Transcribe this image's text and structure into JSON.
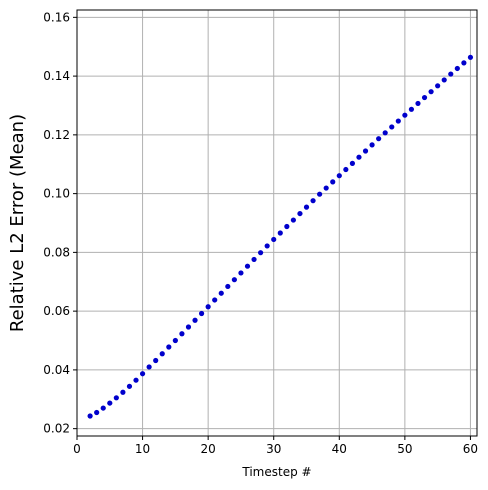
{
  "chart_data": {
    "type": "scatter",
    "title": "",
    "xlabel": "Timestep #",
    "ylabel": "Relative L2 Error (Mean)",
    "xlim": [
      0,
      61
    ],
    "ylim": [
      0.0175,
      0.1625
    ],
    "grid": true,
    "marker_color": "#0000cc",
    "x_ticks": [
      0,
      10,
      20,
      30,
      40,
      50,
      60
    ],
    "x_tick_labels": [
      "0",
      "10",
      "20",
      "30",
      "40",
      "50",
      "60"
    ],
    "y_ticks": [
      0.02,
      0.04,
      0.06,
      0.08,
      0.1,
      0.12,
      0.14,
      0.16
    ],
    "y_tick_labels": [
      "0.02",
      "0.04",
      "0.06",
      "0.08",
      "0.10",
      "0.12",
      "0.14",
      "0.16"
    ],
    "series": [
      {
        "x": [
          2,
          3,
          4,
          5,
          6,
          7,
          8,
          9,
          10,
          11,
          12,
          13,
          14,
          15,
          16,
          17,
          18,
          19,
          20,
          21,
          22,
          23,
          24,
          25,
          26,
          27,
          28,
          29,
          30,
          31,
          32,
          33,
          34,
          35,
          36,
          37,
          38,
          39,
          40,
          41,
          42,
          43,
          44,
          45,
          46,
          47,
          48,
          49,
          50,
          51,
          52,
          53,
          54,
          55,
          56,
          57,
          58,
          59,
          60
        ],
        "y": [
          0.0243,
          0.0255,
          0.027,
          0.0287,
          0.0305,
          0.0324,
          0.0344,
          0.0365,
          0.0387,
          0.041,
          0.0432,
          0.0455,
          0.0478,
          0.05,
          0.0523,
          0.0546,
          0.0569,
          0.0592,
          0.0615,
          0.0638,
          0.0661,
          0.0684,
          0.0707,
          0.073,
          0.0753,
          0.0776,
          0.0799,
          0.0822,
          0.0844,
          0.0866,
          0.0888,
          0.091,
          0.0932,
          0.0954,
          0.0976,
          0.0998,
          0.1019,
          0.104,
          0.1061,
          0.1082,
          0.1103,
          0.1124,
          0.1145,
          0.1166,
          0.1187,
          0.1207,
          0.1227,
          0.1247,
          0.1267,
          0.1287,
          0.1307,
          0.1327,
          0.1347,
          0.1367,
          0.1387,
          0.1407,
          0.1426,
          0.1445,
          0.1464
        ]
      }
    ]
  }
}
